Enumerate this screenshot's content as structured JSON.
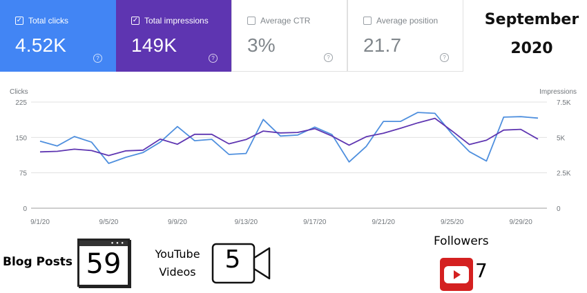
{
  "metrics": [
    {
      "label": "Total clicks",
      "value": "4.52K",
      "checked": true,
      "color": "#4285f4"
    },
    {
      "label": "Total impressions",
      "value": "149K",
      "checked": true,
      "color": "#5e35b1"
    },
    {
      "label": "Average CTR",
      "value": "3%",
      "checked": false
    },
    {
      "label": "Average position",
      "value": "21.7",
      "checked": false
    }
  ],
  "help_glyph": "?",
  "check_glyph": "✓",
  "period": {
    "month": "September",
    "year": "2020"
  },
  "chart_data": {
    "type": "line",
    "left_axis": {
      "label": "Clicks",
      "ticks": [
        "225",
        "150",
        "75",
        "0"
      ],
      "ylim": [
        0,
        225
      ]
    },
    "right_axis": {
      "label": "Impressions",
      "ticks": [
        "7.5K",
        "5K",
        "2.5K",
        "0"
      ],
      "ylim": [
        0,
        7500
      ]
    },
    "x_ticks": [
      "9/1/20",
      "9/5/20",
      "9/9/20",
      "9/13/20",
      "9/17/20",
      "9/21/20",
      "9/25/20",
      "9/29/20"
    ],
    "x": [
      "9/1/20",
      "9/2/20",
      "9/3/20",
      "9/4/20",
      "9/5/20",
      "9/6/20",
      "9/7/20",
      "9/8/20",
      "9/9/20",
      "9/10/20",
      "9/11/20",
      "9/12/20",
      "9/13/20",
      "9/14/20",
      "9/15/20",
      "9/16/20",
      "9/17/20",
      "9/18/20",
      "9/19/20",
      "9/20/20",
      "9/21/20",
      "9/22/20",
      "9/23/20",
      "9/24/20",
      "9/25/20",
      "9/26/20",
      "9/27/20",
      "9/28/20",
      "9/29/20",
      "9/30/20"
    ],
    "grid": true,
    "series": [
      {
        "metric": "clicks",
        "axis": "left",
        "color": "#4e8fde",
        "values": [
          142,
          132,
          152,
          140,
          95,
          108,
          118,
          140,
          173,
          143,
          146,
          114,
          116,
          188,
          153,
          155,
          172,
          156,
          98,
          131,
          184,
          184,
          203,
          201,
          157,
          120,
          100,
          193,
          194,
          191
        ]
      },
      {
        "metric": "impressions",
        "axis": "right",
        "color": "#5e35b1",
        "values": [
          3980,
          4020,
          4170,
          4070,
          3720,
          4050,
          4100,
          4880,
          4520,
          5220,
          5220,
          4550,
          4850,
          5450,
          5320,
          5350,
          5620,
          5100,
          4450,
          5050,
          5300,
          5650,
          6030,
          6350,
          5450,
          4500,
          4800,
          5520,
          5570,
          4880
        ]
      }
    ]
  },
  "stats": {
    "blog_label": "Blog Posts",
    "blog_count": "59",
    "youtube_label_1": "YouTube",
    "youtube_label_2": "Videos",
    "youtube_count": "5",
    "followers_label": "Followers",
    "followers_count": "7"
  }
}
